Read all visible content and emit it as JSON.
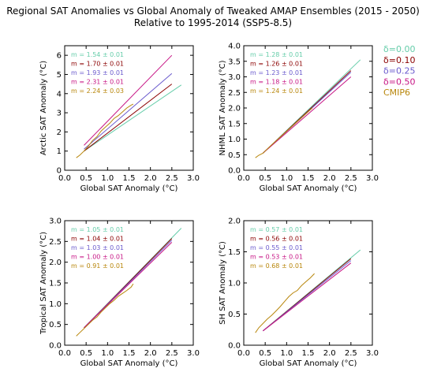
{
  "title_line1": "Regional SAT Anomalies vs Global Anomaly of Tweaked AMAP Ensembles (2015 - 2050)",
  "title_line2": "Relative to 1995-2014 (SSP5-8.5)",
  "legend": [
    {
      "label": "δ=0.00",
      "color": "#66cdaa"
    },
    {
      "label": "δ=0.10",
      "color": "#8b0000"
    },
    {
      "label": "δ=0.25",
      "color": "#6a5acd"
    },
    {
      "label": "δ=0.50",
      "color": "#c71585"
    },
    {
      "label": "CMIP6",
      "color": "#b8860b"
    }
  ],
  "chart_data": [
    {
      "type": "line",
      "xlabel": "Global SAT Anomaly (°C)",
      "ylabel": "Arctic SAT Anomaly (°C)",
      "xlim": [
        0,
        3
      ],
      "ylim": [
        0,
        6.5
      ],
      "xticks": [
        "0.0",
        "0.5",
        "1.0",
        "1.5",
        "2.0",
        "2.5",
        "3.0"
      ],
      "yticks": [
        "0",
        "1",
        "2",
        "3",
        "4",
        "5",
        "6"
      ],
      "annotations": [
        "m = 1.54 ± 0.01",
        "m = 1.70 ± 0.01",
        "m = 1.93 ± 0.01",
        "m = 2.31 ± 0.01",
        "m = 2.24 ± 0.03"
      ],
      "series": [
        {
          "color": "#66cdaa",
          "x": [
            0.45,
            2.72
          ],
          "y": [
            1.0,
            4.45
          ]
        },
        {
          "color": "#8b0000",
          "x": [
            0.45,
            2.5
          ],
          "y": [
            1.0,
            4.5
          ]
        },
        {
          "color": "#6a5acd",
          "x": [
            0.45,
            2.5
          ],
          "y": [
            1.1,
            5.05
          ]
        },
        {
          "color": "#c71585",
          "x": [
            0.45,
            2.5
          ],
          "y": [
            1.3,
            6.0
          ]
        },
        {
          "color": "#b8860b",
          "x": [
            0.27,
            0.35,
            0.45,
            0.55,
            0.65,
            0.75,
            0.85,
            0.95,
            1.05,
            1.15,
            1.25,
            1.35,
            1.45,
            1.55,
            1.6
          ],
          "y": [
            0.65,
            0.78,
            1.0,
            1.25,
            1.55,
            1.75,
            2.05,
            2.25,
            2.45,
            2.7,
            2.85,
            3.05,
            3.25,
            3.4,
            3.45
          ]
        }
      ]
    },
    {
      "type": "line",
      "xlabel": "Global SAT Anomaly (°C)",
      "ylabel": "NHML SAT Anomaly (°C)",
      "xlim": [
        0,
        3
      ],
      "ylim": [
        0,
        4
      ],
      "xticks": [
        "0.0",
        "0.5",
        "1.0",
        "1.5",
        "2.0",
        "2.5",
        "3.0"
      ],
      "yticks": [
        "0.0",
        "0.5",
        "1.0",
        "1.5",
        "2.0",
        "2.5",
        "3.0",
        "3.5",
        "4.0"
      ],
      "annotations": [
        "m = 1.28 ± 0.01",
        "m = 1.26 ± 0.01",
        "m = 1.23 ± 0.01",
        "m = 1.18 ± 0.01",
        "m = 1.24 ± 0.01"
      ],
      "series": [
        {
          "color": "#66cdaa",
          "x": [
            0.45,
            2.72
          ],
          "y": [
            0.55,
            3.55
          ]
        },
        {
          "color": "#8b0000",
          "x": [
            0.45,
            2.5
          ],
          "y": [
            0.55,
            3.2
          ]
        },
        {
          "color": "#6a5acd",
          "x": [
            0.45,
            2.5
          ],
          "y": [
            0.55,
            3.15
          ]
        },
        {
          "color": "#c71585",
          "x": [
            0.45,
            2.5
          ],
          "y": [
            0.55,
            3.0
          ]
        },
        {
          "color": "#b8860b",
          "x": [
            0.27,
            0.35,
            0.45,
            0.6,
            0.8,
            1.0,
            1.2,
            1.4,
            1.6
          ],
          "y": [
            0.4,
            0.48,
            0.55,
            0.75,
            1.0,
            1.25,
            1.5,
            1.75,
            2.0
          ]
        }
      ]
    },
    {
      "type": "line",
      "xlabel": "Global SAT Anomaly (°C)",
      "ylabel": "Tropical SAT Anomaly (°C)",
      "xlim": [
        0,
        3
      ],
      "ylim": [
        0,
        3
      ],
      "xticks": [
        "0.0",
        "0.5",
        "1.0",
        "1.5",
        "2.0",
        "2.5",
        "3.0"
      ],
      "yticks": [
        "0.0",
        "0.5",
        "1.0",
        "1.5",
        "2.0",
        "2.5",
        "3.0"
      ],
      "annotations": [
        "m = 1.05 ± 0.01",
        "m = 1.04 ± 0.01",
        "m = 1.03 ± 0.01",
        "m = 1.00 ± 0.01",
        "m = 0.91 ± 0.01"
      ],
      "series": [
        {
          "color": "#66cdaa",
          "x": [
            0.45,
            2.72
          ],
          "y": [
            0.42,
            2.82
          ]
        },
        {
          "color": "#8b0000",
          "x": [
            0.45,
            2.5
          ],
          "y": [
            0.42,
            2.57
          ]
        },
        {
          "color": "#6a5acd",
          "x": [
            0.45,
            2.5
          ],
          "y": [
            0.42,
            2.53
          ]
        },
        {
          "color": "#c71585",
          "x": [
            0.45,
            2.5
          ],
          "y": [
            0.42,
            2.48
          ]
        },
        {
          "color": "#b8860b",
          "x": [
            0.27,
            0.35,
            0.45,
            0.55,
            0.65,
            0.75,
            0.85,
            0.95,
            1.05,
            1.15,
            1.25,
            1.35,
            1.45,
            1.55,
            1.6
          ],
          "y": [
            0.22,
            0.3,
            0.4,
            0.5,
            0.6,
            0.68,
            0.8,
            0.9,
            1.0,
            1.08,
            1.18,
            1.25,
            1.32,
            1.4,
            1.48
          ]
        }
      ]
    },
    {
      "type": "line",
      "xlabel": "Global SAT Anomaly (°C)",
      "ylabel": "SH SAT Anomaly (°C)",
      "xlim": [
        0,
        3
      ],
      "ylim": [
        0,
        2
      ],
      "xticks": [
        "0.0",
        "0.5",
        "1.0",
        "1.5",
        "2.0",
        "2.5",
        "3.0"
      ],
      "yticks": [
        "0.0",
        "0.5",
        "1.0",
        "1.5",
        "2.0"
      ],
      "annotations": [
        "m = 0.57 ± 0.01",
        "m = 0.56 ± 0.01",
        "m = 0.55 ± 0.01",
        "m = 0.53 ± 0.01",
        "m = 0.68 ± 0.01"
      ],
      "series": [
        {
          "color": "#66cdaa",
          "x": [
            0.45,
            2.72
          ],
          "y": [
            0.23,
            1.53
          ]
        },
        {
          "color": "#8b0000",
          "x": [
            0.45,
            2.5
          ],
          "y": [
            0.23,
            1.39
          ]
        },
        {
          "color": "#6a5acd",
          "x": [
            0.45,
            2.5
          ],
          "y": [
            0.23,
            1.36
          ]
        },
        {
          "color": "#c71585",
          "x": [
            0.45,
            2.5
          ],
          "y": [
            0.23,
            1.32
          ]
        },
        {
          "color": "#b8860b",
          "x": [
            0.27,
            0.35,
            0.45,
            0.55,
            0.65,
            0.75,
            0.85,
            0.95,
            1.05,
            1.15,
            1.25,
            1.35,
            1.45,
            1.55,
            1.65
          ],
          "y": [
            0.2,
            0.28,
            0.35,
            0.42,
            0.48,
            0.55,
            0.62,
            0.7,
            0.78,
            0.84,
            0.88,
            0.96,
            1.02,
            1.08,
            1.15
          ]
        }
      ]
    }
  ]
}
